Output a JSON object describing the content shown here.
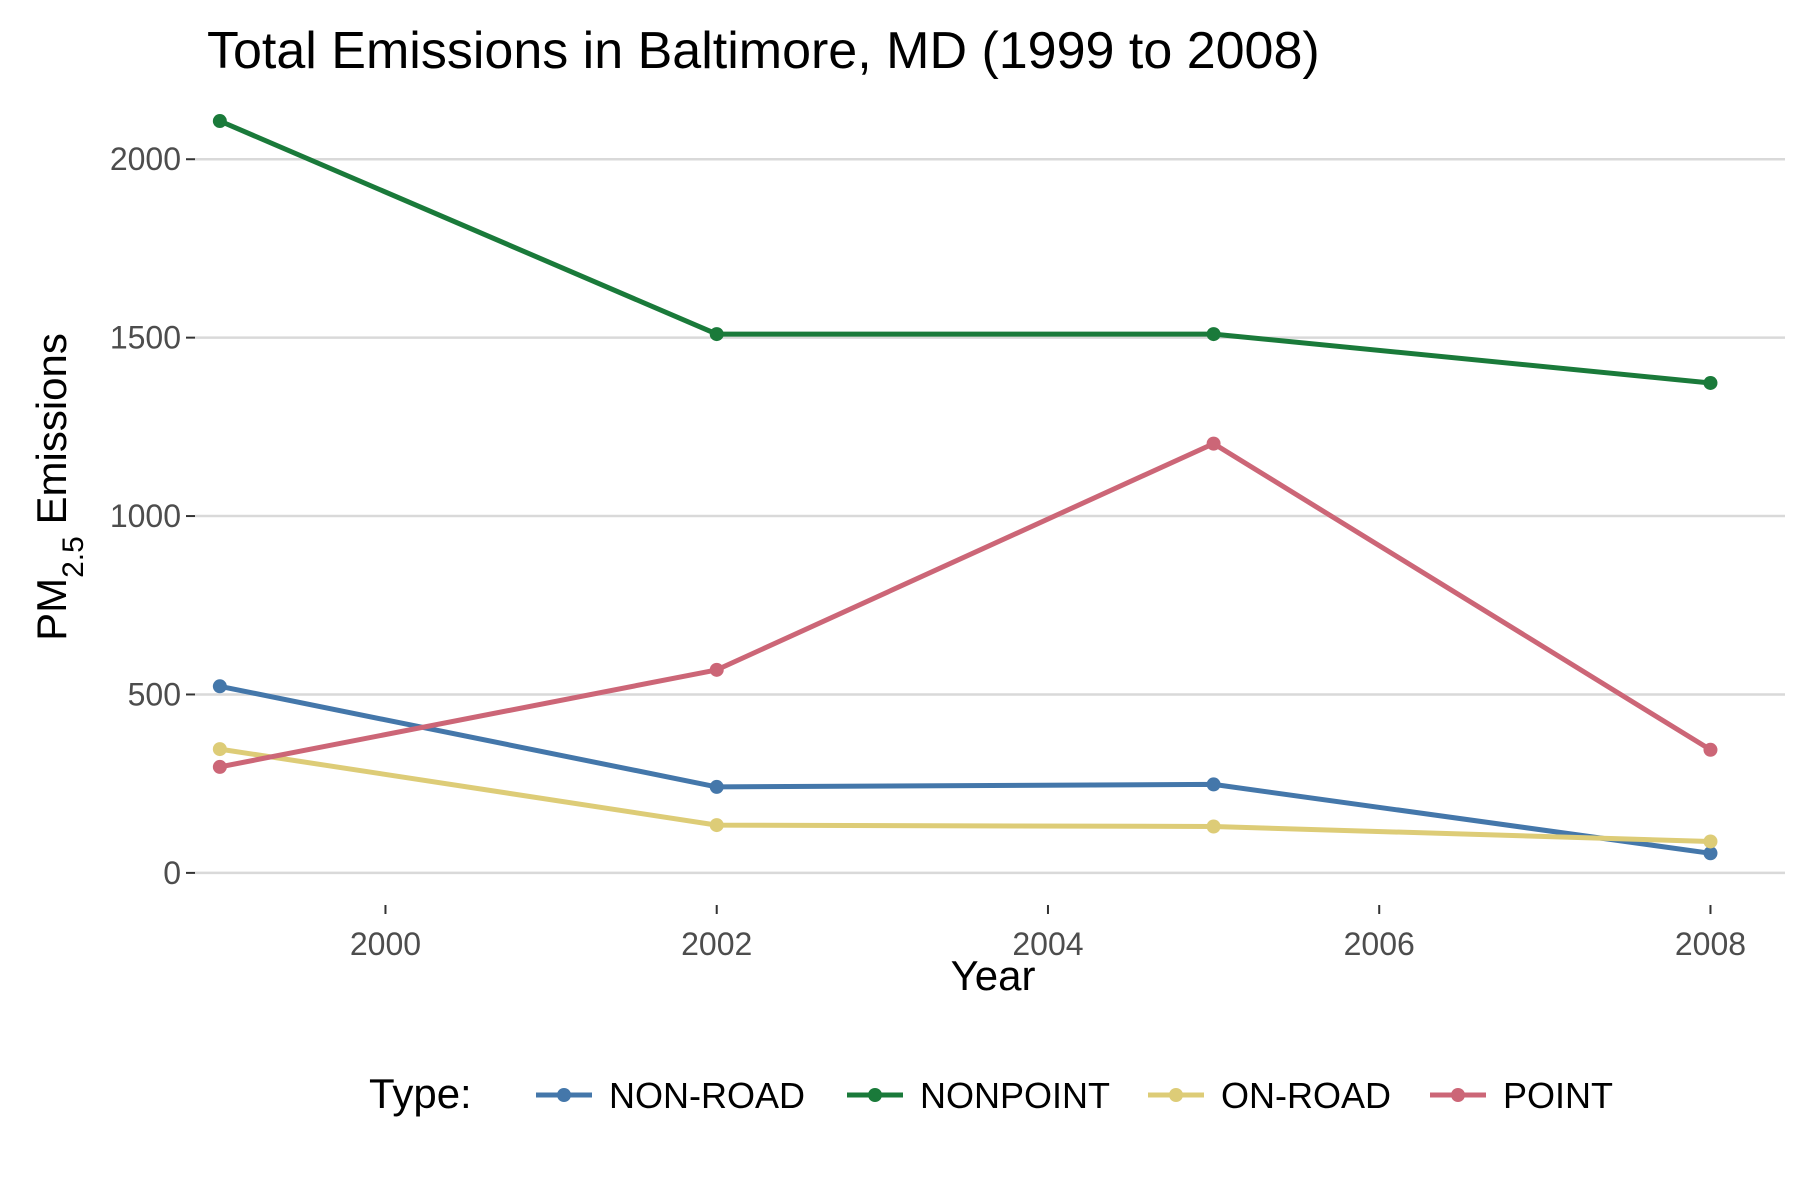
{
  "chart_data": {
    "type": "line",
    "title": "Total Emissions in Baltimore, MD (1999 to 2008)",
    "xlabel": "Year",
    "ylabel": {
      "prefix": "PM",
      "subscript": "2.5",
      "suffix": " Emissions"
    },
    "x": [
      1999,
      2002,
      2005,
      2008
    ],
    "xlim": [
      1998.85,
      2008.45
    ],
    "ylim": [
      -90,
      2180
    ],
    "xticks": [
      2000,
      2002,
      2004,
      2006,
      2008
    ],
    "yticks": [
      0,
      500,
      1000,
      1500,
      2000
    ],
    "grid": {
      "horizontal": true,
      "vertical": false
    },
    "legend": {
      "title": "Type:",
      "position": "bottom"
    },
    "series": [
      {
        "name": "NON-ROAD",
        "color": "#4477aa",
        "values": [
          523,
          241,
          248,
          55
        ]
      },
      {
        "name": "NONPOINT",
        "color": "#1a7a3a",
        "values": [
          2107,
          1510,
          1510,
          1373
        ]
      },
      {
        "name": "ON-ROAD",
        "color": "#ddcc77",
        "values": [
          347,
          134,
          130,
          88
        ]
      },
      {
        "name": "POINT",
        "color": "#cc6677",
        "values": [
          297,
          569,
          1203,
          345
        ]
      }
    ]
  }
}
